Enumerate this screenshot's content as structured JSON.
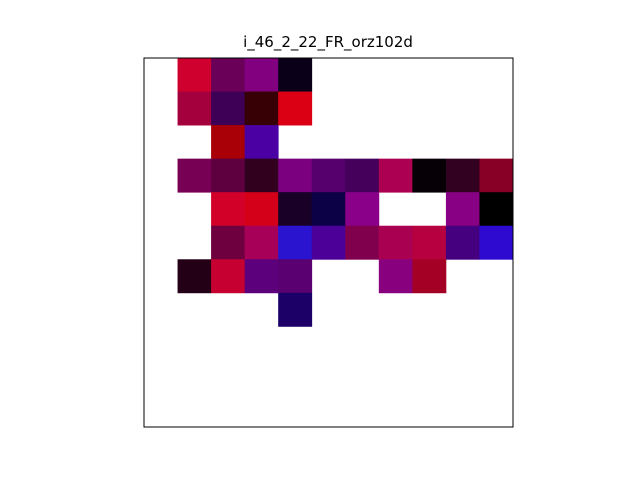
{
  "chart_data": {
    "type": "heatmap",
    "title": "i_46_2_22_FR_orz102d",
    "xlabel": "",
    "ylabel": "",
    "grid": false,
    "legend": "none",
    "axes_ticks": "hidden",
    "n_rows": 11,
    "n_cols": 11,
    "cells": [
      {
        "row": 0,
        "col": 1,
        "color": "#d0002e"
      },
      {
        "row": 0,
        "col": 2,
        "color": "#6a0057"
      },
      {
        "row": 0,
        "col": 3,
        "color": "#820080"
      },
      {
        "row": 0,
        "col": 4,
        "color": "#0a0018"
      },
      {
        "row": 1,
        "col": 1,
        "color": "#a4003e"
      },
      {
        "row": 1,
        "col": 2,
        "color": "#3e0056"
      },
      {
        "row": 1,
        "col": 3,
        "color": "#360004"
      },
      {
        "row": 1,
        "col": 4,
        "color": "#dc0014"
      },
      {
        "row": 2,
        "col": 2,
        "color": "#a80006"
      },
      {
        "row": 2,
        "col": 3,
        "color": "#4a00a2"
      },
      {
        "row": 3,
        "col": 1,
        "color": "#780054"
      },
      {
        "row": 3,
        "col": 2,
        "color": "#5e0040"
      },
      {
        "row": 3,
        "col": 3,
        "color": "#30001e"
      },
      {
        "row": 3,
        "col": 4,
        "color": "#7a0080"
      },
      {
        "row": 3,
        "col": 5,
        "color": "#56006e"
      },
      {
        "row": 3,
        "col": 6,
        "color": "#44005a"
      },
      {
        "row": 3,
        "col": 7,
        "color": "#ac0052"
      },
      {
        "row": 3,
        "col": 8,
        "color": "#060006"
      },
      {
        "row": 3,
        "col": 9,
        "color": "#320020"
      },
      {
        "row": 3,
        "col": 10,
        "color": "#880026"
      },
      {
        "row": 4,
        "col": 2,
        "color": "#d20028"
      },
      {
        "row": 4,
        "col": 3,
        "color": "#d4001a"
      },
      {
        "row": 4,
        "col": 4,
        "color": "#180026"
      },
      {
        "row": 4,
        "col": 5,
        "color": "#0c0046"
      },
      {
        "row": 4,
        "col": 6,
        "color": "#8a0088"
      },
      {
        "row": 4,
        "col": 9,
        "color": "#880084"
      },
      {
        "row": 4,
        "col": 10,
        "color": "#000000"
      },
      {
        "row": 5,
        "col": 2,
        "color": "#6e0040"
      },
      {
        "row": 5,
        "col": 3,
        "color": "#a60058"
      },
      {
        "row": 5,
        "col": 4,
        "color": "#2a14d0"
      },
      {
        "row": 5,
        "col": 5,
        "color": "#4c0098"
      },
      {
        "row": 5,
        "col": 6,
        "color": "#80004e"
      },
      {
        "row": 5,
        "col": 7,
        "color": "#aa0052"
      },
      {
        "row": 5,
        "col": 8,
        "color": "#b60040"
      },
      {
        "row": 5,
        "col": 9,
        "color": "#44007e"
      },
      {
        "row": 5,
        "col": 10,
        "color": "#2e0ad0"
      },
      {
        "row": 6,
        "col": 1,
        "color": "#240016"
      },
      {
        "row": 6,
        "col": 2,
        "color": "#c60030"
      },
      {
        "row": 6,
        "col": 3,
        "color": "#5c007c"
      },
      {
        "row": 6,
        "col": 4,
        "color": "#5a0070"
      },
      {
        "row": 6,
        "col": 7,
        "color": "#88007e"
      },
      {
        "row": 6,
        "col": 8,
        "color": "#a40026"
      },
      {
        "row": 7,
        "col": 4,
        "color": "#1c0068"
      }
    ]
  }
}
